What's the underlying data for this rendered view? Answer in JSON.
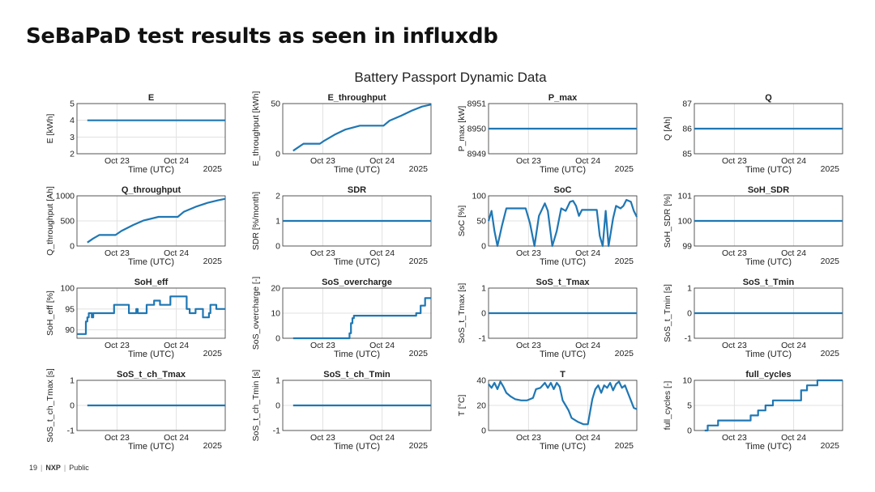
{
  "slide": {
    "title": "SeBaPaD test results as seen in influxdb",
    "footer_page": "19",
    "footer_brand": "NXP",
    "footer_class": "Public"
  },
  "colors": {
    "line": "#1f77b4",
    "grid": "#e1e1e1",
    "axis": "#333333"
  },
  "chart_data": {
    "type": "line",
    "title": "Battery Passport Dynamic Data",
    "xlabel": "Time (UTC)",
    "x_ticks": [
      {
        "t": 0.27,
        "label": "Oct 23"
      },
      {
        "t": 0.67,
        "label": "Oct 24"
      }
    ],
    "x_year_label": "2025",
    "panels": [
      {
        "title": "E",
        "ylabel": "E [kWh]",
        "ylim": [
          2,
          5
        ],
        "yticks": [
          2,
          3,
          4,
          5
        ],
        "t": [
          0.07,
          1.0
        ],
        "y": [
          4,
          4
        ]
      },
      {
        "title": "E_throughput",
        "ylabel": "E_throughput [kWh]",
        "ylim": [
          0,
          50
        ],
        "yticks": [
          0,
          50
        ],
        "t": [
          0.07,
          0.1,
          0.14,
          0.25,
          0.28,
          0.35,
          0.42,
          0.52,
          0.68,
          0.72,
          0.8,
          0.87,
          0.94,
          1.0
        ],
        "y": [
          3,
          6,
          10,
          10,
          13,
          19,
          24,
          28,
          28,
          33,
          38,
          43,
          47,
          49
        ]
      },
      {
        "title": "P_max",
        "ylabel": "P_max [kW]",
        "ylim": [
          8949,
          8951
        ],
        "yticks": [
          8949,
          8950,
          8951
        ],
        "t": [
          0.0,
          1.0
        ],
        "y": [
          8950,
          8950
        ]
      },
      {
        "title": "Q",
        "ylabel": "Q [Ah]",
        "ylim": [
          85,
          87
        ],
        "yticks": [
          85,
          86,
          87
        ],
        "t": [
          0.0,
          1.0
        ],
        "y": [
          86,
          86
        ]
      },
      {
        "title": "Q_throughput",
        "ylabel": "Q_throughput [Ah]",
        "ylim": [
          0,
          1000
        ],
        "yticks": [
          0,
          500,
          1000
        ],
        "t": [
          0.07,
          0.11,
          0.15,
          0.26,
          0.3,
          0.38,
          0.45,
          0.55,
          0.68,
          0.72,
          0.8,
          0.88,
          0.95,
          1.0
        ],
        "y": [
          70,
          150,
          220,
          220,
          300,
          420,
          510,
          580,
          580,
          680,
          780,
          860,
          910,
          940
        ]
      },
      {
        "title": "SDR",
        "ylabel": "SDR [%/month]",
        "ylim": [
          0,
          2
        ],
        "yticks": [
          0,
          1,
          2
        ],
        "t": [
          0.0,
          1.0
        ],
        "y": [
          1,
          1
        ]
      },
      {
        "title": "SoC",
        "ylabel": "SoC [%]",
        "ylim": [
          0,
          100
        ],
        "yticks": [
          0,
          50,
          100
        ],
        "t": [
          0.0,
          0.02,
          0.04,
          0.06,
          0.09,
          0.12,
          0.14,
          0.25,
          0.28,
          0.31,
          0.34,
          0.38,
          0.4,
          0.43,
          0.46,
          0.49,
          0.52,
          0.55,
          0.57,
          0.59,
          0.61,
          0.63,
          0.65,
          0.68,
          0.7,
          0.73,
          0.75,
          0.77,
          0.79,
          0.81,
          0.84,
          0.86,
          0.89,
          0.91,
          0.93,
          0.96,
          0.98,
          1.0
        ],
        "y": [
          50,
          70,
          30,
          0,
          40,
          75,
          75,
          75,
          45,
          0,
          60,
          85,
          70,
          0,
          30,
          75,
          70,
          88,
          90,
          80,
          60,
          72,
          72,
          72,
          72,
          72,
          20,
          0,
          70,
          0,
          55,
          80,
          75,
          80,
          92,
          88,
          70,
          58
        ]
      },
      {
        "title": "SoH_SDR",
        "ylabel": "SoH_SDR [%]",
        "ylim": [
          99,
          101
        ],
        "yticks": [
          99,
          100,
          101
        ],
        "t": [
          0.0,
          1.0
        ],
        "y": [
          100,
          100
        ]
      },
      {
        "title": "SoH_eff",
        "ylabel": "SoH_eff [%]",
        "ylim": [
          88,
          100
        ],
        "yticks": [
          90,
          95,
          100
        ],
        "t": [
          0.0,
          0.06,
          0.06,
          0.07,
          0.07,
          0.08,
          0.08,
          0.1,
          0.1,
          0.11,
          0.11,
          0.12,
          0.12,
          0.25,
          0.25,
          0.35,
          0.35,
          0.4,
          0.4,
          0.41,
          0.41,
          0.47,
          0.47,
          0.52,
          0.52,
          0.56,
          0.56,
          0.63,
          0.63,
          0.74,
          0.74,
          0.76,
          0.76,
          0.8,
          0.8,
          0.85,
          0.85,
          0.89,
          0.89,
          0.9,
          0.9,
          0.94,
          0.94,
          0.95,
          0.95,
          1.0
        ],
        "y": [
          89,
          89,
          92,
          92,
          93,
          93,
          94,
          94,
          93,
          93,
          94,
          94,
          94,
          94,
          96,
          96,
          94,
          94,
          95,
          95,
          94,
          94,
          96,
          96,
          97,
          97,
          96,
          96,
          98,
          98,
          95,
          95,
          94,
          94,
          95,
          95,
          93,
          93,
          94,
          94,
          96,
          96,
          95,
          95,
          95,
          95
        ]
      },
      {
        "title": "SoS_overcharge",
        "ylabel": "SoS_overcharge [-]",
        "ylim": [
          0,
          20
        ],
        "yticks": [
          0,
          10,
          20
        ],
        "t": [
          0.07,
          0.45,
          0.45,
          0.46,
          0.46,
          0.47,
          0.47,
          0.48,
          0.48,
          0.9,
          0.9,
          0.93,
          0.93,
          0.96,
          0.96,
          1.0
        ],
        "y": [
          0,
          0,
          2,
          2,
          6,
          6,
          8,
          8,
          9,
          9,
          10,
          10,
          13,
          13,
          16,
          16
        ]
      },
      {
        "title": "SoS_t_Tmax",
        "ylabel": "SoS_t_Tmax [s]",
        "ylim": [
          -1,
          1
        ],
        "yticks": [
          -1,
          0,
          1
        ],
        "t": [
          0.0,
          1.0
        ],
        "y": [
          0,
          0
        ]
      },
      {
        "title": "SoS_t_Tmin",
        "ylabel": "SoS_t_Tmin [s]",
        "ylim": [
          -1,
          1
        ],
        "yticks": [
          -1,
          0,
          1
        ],
        "t": [
          0.0,
          1.0
        ],
        "y": [
          0,
          0
        ]
      },
      {
        "title": "SoS_t_ch_Tmax",
        "ylabel": "SoS_t_ch_Tmax [s]",
        "ylim": [
          -1,
          1
        ],
        "yticks": [
          -1,
          0,
          1
        ],
        "t": [
          0.07,
          1.0
        ],
        "y": [
          0,
          0
        ]
      },
      {
        "title": "SoS_t_ch_Tmin",
        "ylabel": "SoS_t_ch_Tmin [s]",
        "ylim": [
          -1,
          1
        ],
        "yticks": [
          -1,
          0,
          1
        ],
        "t": [
          0.07,
          1.0
        ],
        "y": [
          0,
          0
        ]
      },
      {
        "title": "T",
        "ylabel": "T [°C]",
        "ylim": [
          0,
          40
        ],
        "yticks": [
          0,
          20,
          40
        ],
        "t": [
          0.0,
          0.02,
          0.04,
          0.06,
          0.08,
          0.1,
          0.12,
          0.15,
          0.18,
          0.22,
          0.26,
          0.3,
          0.32,
          0.35,
          0.38,
          0.4,
          0.42,
          0.44,
          0.46,
          0.48,
          0.5,
          0.52,
          0.54,
          0.56,
          0.6,
          0.64,
          0.67,
          0.7,
          0.72,
          0.74,
          0.76,
          0.78,
          0.8,
          0.82,
          0.84,
          0.86,
          0.88,
          0.9,
          0.92,
          0.94,
          0.96,
          0.98,
          1.0
        ],
        "y": [
          37,
          34,
          38,
          33,
          39,
          35,
          30,
          27,
          25,
          24,
          24,
          26,
          33,
          34,
          38,
          34,
          38,
          33,
          38,
          35,
          24,
          20,
          16,
          10,
          7,
          5,
          5,
          25,
          33,
          36,
          30,
          36,
          34,
          38,
          32,
          37,
          39,
          34,
          36,
          30,
          24,
          18,
          17
        ]
      },
      {
        "title": "full_cycles",
        "ylabel": "full_cycles [-]",
        "ylim": [
          0,
          10
        ],
        "yticks": [
          0,
          5,
          10
        ],
        "t": [
          0.07,
          0.09,
          0.09,
          0.16,
          0.16,
          0.38,
          0.38,
          0.43,
          0.43,
          0.48,
          0.48,
          0.53,
          0.53,
          0.72,
          0.72,
          0.76,
          0.76,
          0.83,
          0.83,
          0.88,
          0.88,
          1.0
        ],
        "y": [
          0,
          0,
          1,
          1,
          2,
          2,
          3,
          3,
          4,
          4,
          5,
          5,
          6,
          6,
          8,
          8,
          9,
          9,
          10,
          10,
          10,
          10
        ]
      }
    ]
  }
}
